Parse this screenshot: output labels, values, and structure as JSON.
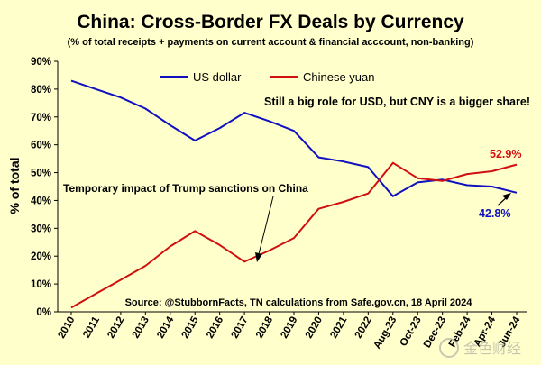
{
  "chart_data": {
    "type": "line",
    "title": "China: Cross-Border FX Deals by Currency",
    "subtitle": "(% of total receipts + payments on current account & financial acccount, non-banking)",
    "xlabel": "",
    "ylabel": "% of total",
    "categories": [
      "2010",
      "2011",
      "2012",
      "2013",
      "2014",
      "2015",
      "2016",
      "2017",
      "2018",
      "2019",
      "2020",
      "2021",
      "2022",
      "Aug-23",
      "Oct-23",
      "Dec-23",
      "Feb-24",
      "Apr-24",
      "Jun-24"
    ],
    "y_ticks": [
      "0%",
      "10%",
      "20%",
      "30%",
      "40%",
      "50%",
      "60%",
      "70%",
      "80%",
      "90%"
    ],
    "ylim": [
      0,
      90
    ],
    "grid": false,
    "legend_position": "top-center",
    "series": [
      {
        "name": "US dollar",
        "color": "#1010C0",
        "values": [
          83.0,
          80.0,
          77.0,
          73.0,
          67.0,
          61.5,
          66.0,
          71.5,
          68.5,
          65.0,
          55.5,
          54.0,
          52.0,
          41.5,
          46.5,
          47.5,
          45.5,
          45.0,
          42.8
        ]
      },
      {
        "name": "Chinese yuan",
        "color": "#D01010",
        "values": [
          1.5,
          6.5,
          11.5,
          16.5,
          23.5,
          29.0,
          24.0,
          18.0,
          22.0,
          26.5,
          37.0,
          39.5,
          42.5,
          53.5,
          48.0,
          47.0,
          49.5,
          50.5,
          52.9
        ]
      }
    ],
    "data_labels": [
      {
        "series": "Chinese yuan",
        "text": "52.9%"
      },
      {
        "series": "US dollar",
        "text": "42.8%"
      }
    ],
    "annotations": [
      {
        "text": "Still a big role for USD, but CNY is a bigger share!"
      },
      {
        "text": "Temporary impact of Trump sanctions on China"
      }
    ],
    "source_note": "Source: @StubbornFacts, TN calculations from Safe.gov.cn, 18 April 2024",
    "watermark": "金色财经"
  }
}
